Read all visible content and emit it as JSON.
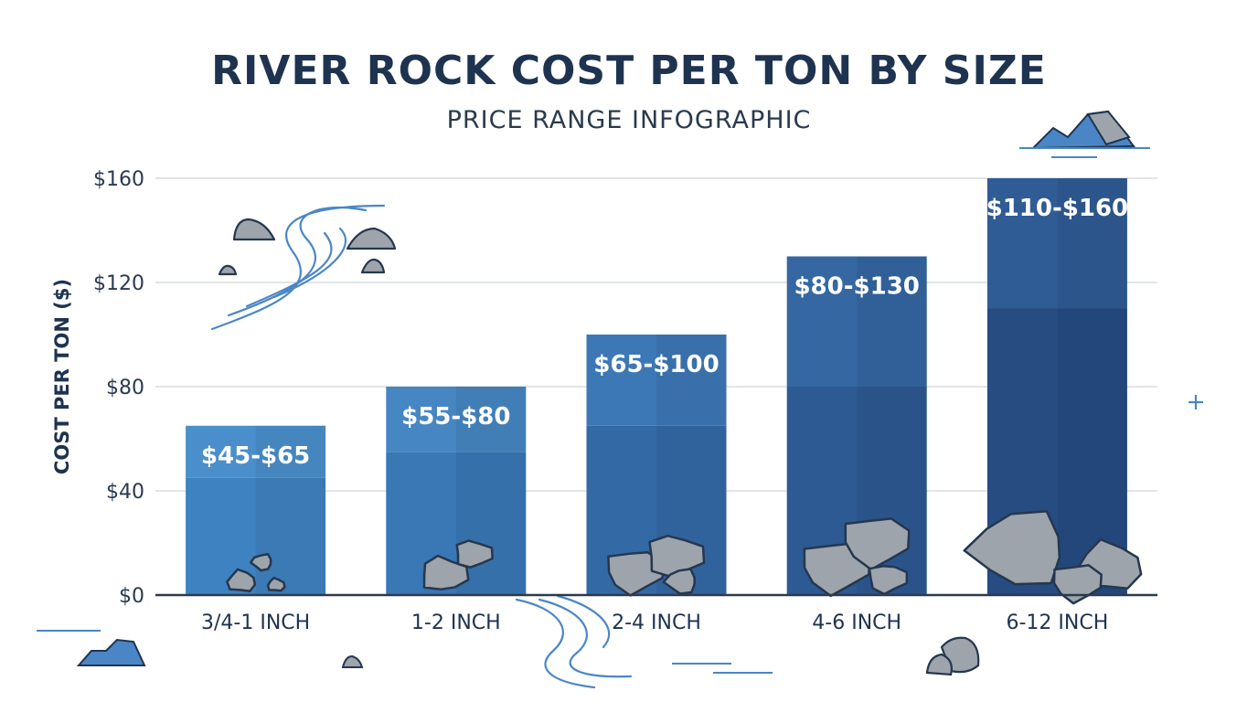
{
  "chart_data": {
    "type": "bar",
    "title": "RIVER ROCK COST PER TON BY SIZE",
    "subtitle": "PRICE RANGE INFOGRAPHIC",
    "ylabel": "COST PER TON ($)",
    "xlabel": "",
    "ylim": [
      0,
      160
    ],
    "yticks": [
      0,
      40,
      80,
      120,
      160
    ],
    "ytick_labels": [
      "$0",
      "$40",
      "$80",
      "$120",
      "$160"
    ],
    "grid": true,
    "categories": [
      "3/4-1 INCH",
      "1-2 INCH",
      "2-4 INCH",
      "4-6 INCH",
      "6-12 INCH"
    ],
    "series": [
      {
        "low": [
          45,
          55,
          65,
          80,
          110
        ],
        "high": [
          65,
          80,
          100,
          130,
          160
        ]
      }
    ],
    "data_labels": [
      "$45-$65",
      "$55-$80",
      "$65-$100",
      "$80-$130",
      "$110-$160"
    ]
  },
  "colors": {
    "title": "#1e3350",
    "axis": "#2a3a4f",
    "grid": "#cfd5dc",
    "bar_top": [
      "#4a8fcb",
      "#4686c2",
      "#3d78b6",
      "#3567a2",
      "#2f5c94"
    ],
    "bar_bottom": [
      "#3f82c1",
      "#3a77b5",
      "#336aa6",
      "#2d5a92",
      "#264c82"
    ],
    "rock_fill": "#9ea4ab",
    "rock_stroke": "#25374f",
    "deco_blue": "#4a86c6"
  },
  "icons": [
    "rock-icon",
    "river-icon",
    "mountain-icon",
    "plus-icon"
  ]
}
